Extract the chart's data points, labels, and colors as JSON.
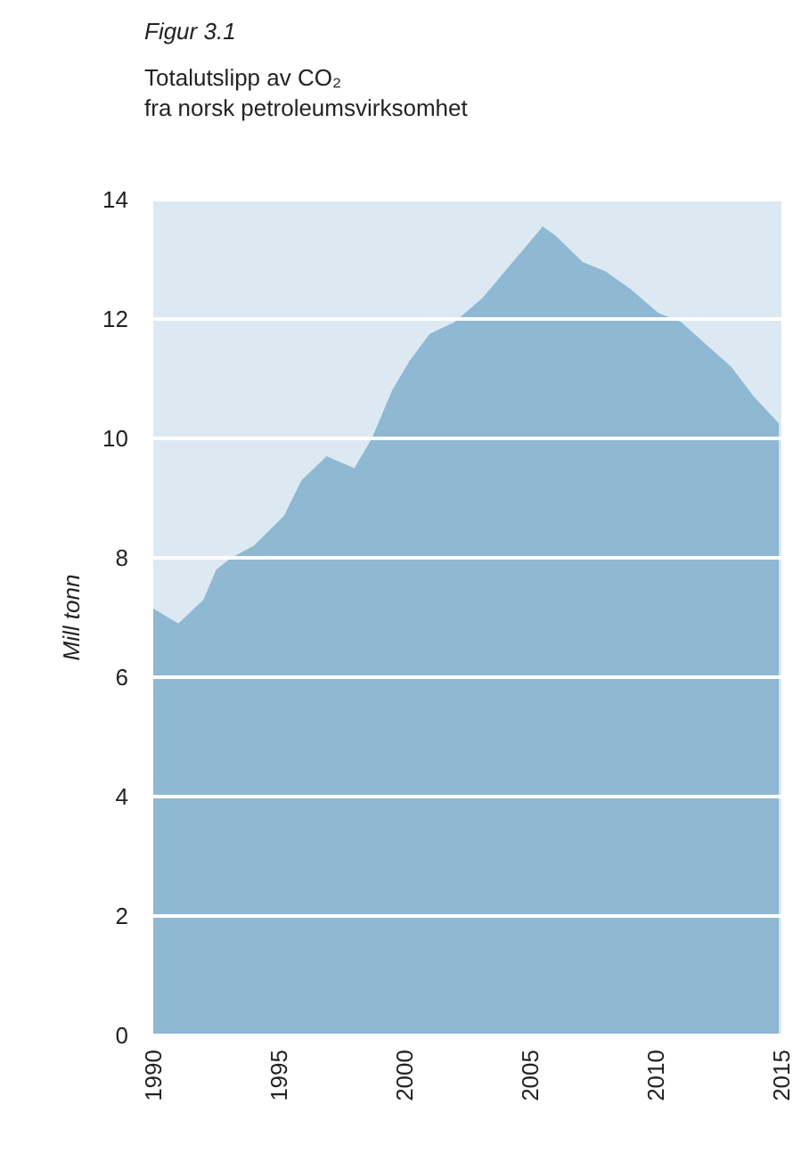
{
  "chart_data": {
    "type": "area",
    "title": "Figur 3.1",
    "subtitle": "Totalutslipp av CO₂\nfra norsk petroleumsvirksomhet",
    "ylabel": "Mill tonn",
    "x": [
      1990,
      1991,
      1992,
      1992.5,
      1993.1,
      1994,
      1995.2,
      1995.9,
      1996.9,
      1998,
      1998.7,
      1999.5,
      2000.2,
      2001,
      2002,
      2003.1,
      2004.1,
      2005,
      2005.5,
      2006,
      2007.1,
      2008,
      2009,
      2010.1,
      2011,
      2011.8,
      2013,
      2013.9,
      2014.9
    ],
    "series": [
      {
        "color": "#8fb8d3",
        "values": [
          7.15,
          6.9,
          7.3,
          7.8,
          8.0,
          8.2,
          8.7,
          9.3,
          9.7,
          9.5,
          10.0,
          10.8,
          11.3,
          11.75,
          11.95,
          12.35,
          12.85,
          13.3,
          13.55,
          13.4,
          12.95,
          12.8,
          12.5,
          12.1,
          11.95,
          11.65,
          11.2,
          10.7,
          10.25
        ]
      }
    ],
    "xlim": [
      1990,
      2015
    ],
    "xticks": [
      1990,
      1995,
      2000,
      2005,
      2010,
      2015
    ],
    "ylim": [
      0,
      14
    ],
    "yticks": [
      0,
      2,
      4,
      6,
      8,
      10,
      12,
      14
    ],
    "grid": "y"
  }
}
